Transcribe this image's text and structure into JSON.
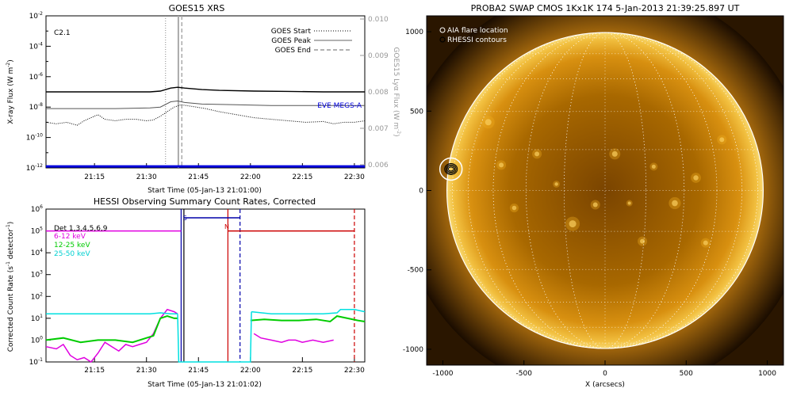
{
  "colors": {
    "goes_long": "#000000",
    "goes_short": "#555555",
    "lya": "#999999",
    "eve": "#0000dd",
    "det": "#000000",
    "e_6_12": "#e000e0",
    "e_12_25": "#00cc00",
    "e_25_50": "#00e0e0",
    "attn": "#0000aa",
    "night": "#cc0000",
    "sun_core": "#5a3000",
    "sun_mid": "#e8a010",
    "sun_limb": "#f6d060"
  },
  "chart_data": [
    {
      "type": "line",
      "title": "GOES15 XRS",
      "xlabel": "Start Time (05-Jan-13 21:01:00)",
      "ylabel": "X-ray Flux (W m",
      "ylabel_sup": "-2",
      "ylabel_close": ")",
      "y2label": "GOES15 Lyα Flux (W m",
      "y2label_sup": "-2",
      "y2label_close": ")",
      "annotation": "C2.1",
      "eve_label": "EVE MEGS-A",
      "ylog": true,
      "ylim_exp": [
        -12,
        -2
      ],
      "y_tick_exps": [
        -12,
        -10,
        -8,
        -6,
        -4,
        -2
      ],
      "y2lim": [
        0.006,
        0.01
      ],
      "y2_ticks": [
        "0.006",
        "0.007",
        "0.008",
        "0.009",
        "0.010"
      ],
      "xlim_min": [
        0,
        92
      ],
      "x_ticks": [
        {
          "label": "21:15",
          "m": 14
        },
        {
          "label": "21:30",
          "m": 29
        },
        {
          "label": "21:45",
          "m": 44
        },
        {
          "label": "22:00",
          "m": 59
        },
        {
          "label": "22:15",
          "m": 74
        },
        {
          "label": "22:30",
          "m": 89
        }
      ],
      "legend": [
        {
          "name": "GOES Start",
          "style": "dotted"
        },
        {
          "name": "GOES Peak",
          "style": "solid"
        },
        {
          "name": "GOES End",
          "style": "dashed"
        }
      ],
      "vlines": [
        {
          "m": 34.5,
          "style": "dotted"
        },
        {
          "m": 38.2,
          "style": "solid"
        },
        {
          "m": 39.2,
          "style": "dashed"
        }
      ],
      "series": [
        {
          "key": "long",
          "points": [
            [
              0,
              -7.0
            ],
            [
              10,
              -7.0
            ],
            [
              20,
              -7.0
            ],
            [
              30,
              -7.0
            ],
            [
              33,
              -6.95
            ],
            [
              36,
              -6.75
            ],
            [
              38,
              -6.7
            ],
            [
              40,
              -6.75
            ],
            [
              45,
              -6.85
            ],
            [
              50,
              -6.9
            ],
            [
              60,
              -6.95
            ],
            [
              70,
              -6.97
            ],
            [
              80,
              -7.0
            ],
            [
              92,
              -7.0
            ]
          ]
        },
        {
          "key": "short",
          "points": [
            [
              0,
              -8.1
            ],
            [
              10,
              -8.1
            ],
            [
              20,
              -8.1
            ],
            [
              30,
              -8.05
            ],
            [
              33,
              -8.0
            ],
            [
              36,
              -7.65
            ],
            [
              38,
              -7.6
            ],
            [
              40,
              -7.7
            ],
            [
              45,
              -7.8
            ],
            [
              55,
              -7.85
            ],
            [
              65,
              -7.9
            ],
            [
              75,
              -7.9
            ],
            [
              92,
              -7.9
            ]
          ]
        },
        {
          "key": "lya",
          "points": [
            [
              0,
              -9.0
            ],
            [
              3,
              -9.1
            ],
            [
              6,
              -9.0
            ],
            [
              9,
              -9.2
            ],
            [
              11,
              -8.9
            ],
            [
              13,
              -8.7
            ],
            [
              15,
              -8.5
            ],
            [
              17,
              -8.8
            ],
            [
              20,
              -8.9
            ],
            [
              23,
              -8.8
            ],
            [
              26,
              -8.8
            ],
            [
              29,
              -8.9
            ],
            [
              31,
              -8.85
            ],
            [
              33,
              -8.6
            ],
            [
              35,
              -8.3
            ],
            [
              37,
              -8.0
            ],
            [
              39,
              -7.85
            ],
            [
              42,
              -7.95
            ],
            [
              46,
              -8.1
            ],
            [
              50,
              -8.3
            ],
            [
              55,
              -8.5
            ],
            [
              60,
              -8.7
            ],
            [
              65,
              -8.8
            ],
            [
              70,
              -8.9
            ],
            [
              75,
              -9.0
            ],
            [
              80,
              -8.95
            ],
            [
              83,
              -9.1
            ],
            [
              86,
              -9.0
            ],
            [
              89,
              -9.0
            ],
            [
              92,
              -8.9
            ]
          ]
        },
        {
          "key": "eve",
          "points": [
            [
              0,
              -11.9
            ],
            [
              92,
              -11.9
            ]
          ]
        }
      ]
    },
    {
      "type": "line",
      "title": "HESSI Observing Summary Count Rates, Corrected",
      "xlabel": "Start Time (05-Jan-13 21:01:02)",
      "ylabel": "Corrected Count Rate (s",
      "ylabel_sup": "-1",
      "ylabel_mid": " detector",
      "ylabel_sup2": "-1",
      "ylabel_close": ")",
      "ylog": true,
      "ylim_exp": [
        -1,
        6
      ],
      "y_tick_exps": [
        -1,
        0,
        1,
        2,
        3,
        4,
        5,
        6
      ],
      "xlim_min": [
        0,
        92
      ],
      "x_ticks": [
        {
          "label": "21:15",
          "m": 14
        },
        {
          "label": "21:30",
          "m": 29
        },
        {
          "label": "21:45",
          "m": 44
        },
        {
          "label": "22:00",
          "m": 59
        },
        {
          "label": "22:15",
          "m": 74
        },
        {
          "label": "22:30",
          "m": 89
        }
      ],
      "legend": [
        {
          "name": "Det 1,3,4,5,6,9",
          "color_key": "det"
        },
        {
          "name": "6-12 keV",
          "color_key": "e_6_12"
        },
        {
          "name": "12-25 keV",
          "color_key": "e_12_25"
        },
        {
          "name": "25-50 keV",
          "color_key": "e_25_50"
        }
      ],
      "flag_labels": [
        {
          "text": "S",
          "m": 39.5,
          "exp": 5.5,
          "color_key": "attn"
        },
        {
          "text": "N",
          "m": 51.5,
          "exp": 5.1,
          "color_key": "night"
        }
      ],
      "vlines": [
        {
          "m": 39.0,
          "style": "solid",
          "color_key": "attn"
        },
        {
          "m": 39.8,
          "style": "solid",
          "color_key": "det"
        },
        {
          "m": 52.5,
          "style": "solid",
          "color_key": "night"
        },
        {
          "m": 56.0,
          "style": "dashed",
          "color_key": "attn"
        },
        {
          "m": 89.0,
          "style": "dashed",
          "color_key": "night"
        }
      ],
      "series": [
        {
          "key": "e_6_12",
          "points": [
            [
              0,
              5.0
            ],
            [
              39,
              5.0
            ]
          ]
        },
        {
          "key": "e_6_12_low",
          "points": [
            [
              0,
              -0.3
            ],
            [
              3,
              -0.4
            ],
            [
              5,
              -0.2
            ],
            [
              7,
              -0.7
            ],
            [
              9,
              -0.9
            ],
            [
              11,
              -0.8
            ],
            [
              13,
              -1.0
            ],
            [
              15,
              -0.6
            ],
            [
              17,
              -0.1
            ],
            [
              19,
              -0.3
            ],
            [
              21,
              -0.5
            ],
            [
              23,
              -0.2
            ],
            [
              25,
              -0.3
            ],
            [
              27,
              -0.2
            ],
            [
              29,
              -0.1
            ],
            [
              31,
              0.3
            ],
            [
              33,
              1.0
            ],
            [
              35,
              1.4
            ],
            [
              37,
              1.3
            ],
            [
              38,
              1.2
            ]
          ]
        },
        {
          "key": "e_6_12_post",
          "points": [
            [
              60,
              0.3
            ],
            [
              62,
              0.1
            ],
            [
              65,
              0.0
            ],
            [
              68,
              -0.1
            ],
            [
              70,
              0.0
            ],
            [
              72,
              0.0
            ],
            [
              74,
              -0.1
            ],
            [
              77,
              0.0
            ],
            [
              80,
              -0.1
            ],
            [
              83,
              0.0
            ]
          ]
        },
        {
          "key": "e_12_25",
          "points": [
            [
              0,
              0.0
            ],
            [
              5,
              0.1
            ],
            [
              10,
              -0.1
            ],
            [
              15,
              0.0
            ],
            [
              20,
              0.0
            ],
            [
              25,
              -0.1
            ],
            [
              29,
              0.1
            ],
            [
              31,
              0.2
            ],
            [
              33,
              1.0
            ],
            [
              35,
              1.1
            ],
            [
              37,
              1.0
            ],
            [
              38,
              1.0
            ]
          ]
        },
        {
          "key": "e_12_25_post",
          "points": [
            [
              59,
              0.9
            ],
            [
              63,
              0.95
            ],
            [
              68,
              0.9
            ],
            [
              73,
              0.9
            ],
            [
              78,
              0.95
            ],
            [
              82,
              0.85
            ],
            [
              84,
              1.1
            ],
            [
              87,
              1.0
            ],
            [
              90,
              0.9
            ],
            [
              92,
              0.85
            ]
          ]
        },
        {
          "key": "e_25_50",
          "points": [
            [
              0,
              1.2
            ],
            [
              10,
              1.2
            ],
            [
              20,
              1.2
            ],
            [
              30,
              1.2
            ],
            [
              33,
              1.25
            ],
            [
              36,
              1.2
            ],
            [
              38,
              1.2
            ]
          ]
        },
        {
          "key": "e_25_50_drop",
          "points": [
            [
              38,
              1.2
            ],
            [
              38.3,
              -1.0
            ],
            [
              59,
              -1.0
            ],
            [
              59.3,
              1.3
            ]
          ]
        },
        {
          "key": "e_25_50_post",
          "points": [
            [
              59.3,
              1.3
            ],
            [
              65,
              1.2
            ],
            [
              70,
              1.2
            ],
            [
              75,
              1.2
            ],
            [
              80,
              1.2
            ],
            [
              84,
              1.25
            ],
            [
              85,
              1.4
            ],
            [
              89,
              1.4
            ],
            [
              92,
              1.3
            ]
          ]
        },
        {
          "key": "attn",
          "points": [
            [
              39.8,
              5.6
            ],
            [
              56,
              5.6
            ]
          ]
        },
        {
          "key": "night",
          "points": [
            [
              52.5,
              5.0
            ],
            [
              89,
              5.0
            ]
          ]
        }
      ]
    },
    {
      "type": "scatter",
      "title": "PROBA2 SWAP CMOS 1Kx1K 174  5-Jan-2013 21:39:25.897 UT",
      "xlabel": "X (arcsecs)",
      "xlim": [
        -1100,
        1100
      ],
      "ylim": [
        -1100,
        1100
      ],
      "x_ticks": [
        "-1000",
        "-500",
        "0",
        "500",
        "1000"
      ],
      "y_ticks": [
        "-1000",
        "-500",
        "0",
        "500",
        "1000"
      ],
      "legend": [
        {
          "name": "AIA flare location",
          "marker": "circle-white"
        },
        {
          "name": "RHESSI contours",
          "marker": "circle-black"
        }
      ],
      "flare_location": [
        -950,
        135
      ],
      "solar_radius": 975
    }
  ]
}
